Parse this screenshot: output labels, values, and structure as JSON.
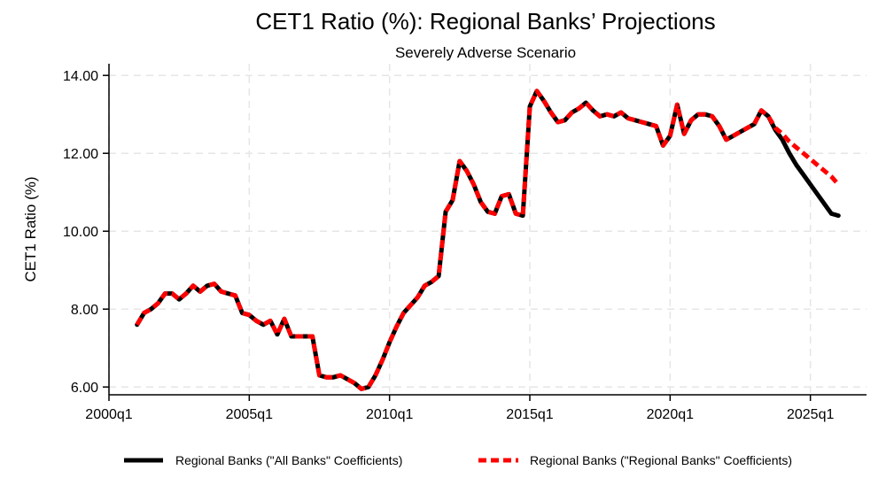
{
  "chart_data": {
    "type": "line",
    "title": "CET1 Ratio (%): Regional Banks’ Projections",
    "subtitle": "Severely Adverse Scenario",
    "ylabel": "CET1 Ratio (%)",
    "xlabel": "",
    "xlim": [
      2000.0,
      2027.0
    ],
    "ylim": [
      5.8,
      14.3
    ],
    "x_ticks": [
      2000.0,
      2005.0,
      2010.0,
      2015.0,
      2020.0,
      2025.0
    ],
    "x_tick_labels": [
      "2000q1",
      "2005q1",
      "2010q1",
      "2015q1",
      "2020q1",
      "2025q1"
    ],
    "y_ticks": [
      6,
      8,
      10,
      12,
      14
    ],
    "y_tick_labels": [
      "6.00",
      "8.00",
      "10.00",
      "12.00",
      "14.00"
    ],
    "grid": true,
    "legend_position": "bottom",
    "series": [
      {
        "name": "Regional Banks (\"All Banks\" Coefficients)",
        "color": "#000000",
        "style": "solid",
        "x": [
          2001.0,
          2001.25,
          2001.5,
          2001.75,
          2002.0,
          2002.25,
          2002.5,
          2002.75,
          2003.0,
          2003.25,
          2003.5,
          2003.75,
          2004.0,
          2004.25,
          2004.5,
          2004.75,
          2005.0,
          2005.25,
          2005.5,
          2005.75,
          2006.0,
          2006.25,
          2006.5,
          2006.75,
          2007.0,
          2007.25,
          2007.5,
          2007.75,
          2008.0,
          2008.25,
          2008.5,
          2008.75,
          2009.0,
          2009.25,
          2009.5,
          2009.75,
          2010.0,
          2010.25,
          2010.5,
          2010.75,
          2011.0,
          2011.25,
          2011.5,
          2011.75,
          2012.0,
          2012.25,
          2012.5,
          2012.75,
          2013.0,
          2013.25,
          2013.5,
          2013.75,
          2014.0,
          2014.25,
          2014.5,
          2014.75,
          2015.0,
          2015.25,
          2015.5,
          2015.75,
          2016.0,
          2016.25,
          2016.5,
          2016.75,
          2017.0,
          2017.25,
          2017.5,
          2017.75,
          2018.0,
          2018.25,
          2018.5,
          2018.75,
          2019.0,
          2019.25,
          2019.5,
          2019.75,
          2020.0,
          2020.25,
          2020.5,
          2020.75,
          2021.0,
          2021.25,
          2021.5,
          2021.75,
          2022.0,
          2022.25,
          2022.5,
          2022.75,
          2023.0,
          2023.25,
          2023.5,
          2023.75,
          2024.0,
          2024.25,
          2024.5,
          2024.75,
          2025.0,
          2025.25,
          2025.5,
          2025.75,
          2026.0
        ],
        "y": [
          7.6,
          7.9,
          8.0,
          8.15,
          8.4,
          8.4,
          8.25,
          8.4,
          8.6,
          8.45,
          8.6,
          8.65,
          8.45,
          8.4,
          8.35,
          7.9,
          7.85,
          7.7,
          7.6,
          7.7,
          7.35,
          7.75,
          7.3,
          7.3,
          7.3,
          7.3,
          6.3,
          6.25,
          6.25,
          6.3,
          6.2,
          6.1,
          5.95,
          6.0,
          6.3,
          6.7,
          7.15,
          7.55,
          7.9,
          8.1,
          8.3,
          8.6,
          8.7,
          8.85,
          10.5,
          10.8,
          11.8,
          11.55,
          11.2,
          10.75,
          10.5,
          10.45,
          10.9,
          10.95,
          10.45,
          10.4,
          13.2,
          13.6,
          13.35,
          13.05,
          12.8,
          12.85,
          13.05,
          13.15,
          13.3,
          13.1,
          12.95,
          13.0,
          12.95,
          13.05,
          12.9,
          12.85,
          12.8,
          12.75,
          12.7,
          12.2,
          12.45,
          13.25,
          12.5,
          12.85,
          13.0,
          13.0,
          12.95,
          12.7,
          12.35,
          12.45,
          12.55,
          12.65,
          12.75,
          13.1,
          12.95,
          12.6,
          12.35,
          12.0,
          11.7,
          11.45,
          11.2,
          10.95,
          10.7,
          10.45,
          10.4
        ]
      },
      {
        "name": "Regional Banks (\"Regional Banks\" Coefficients)",
        "color": "#ff0000",
        "style": "dashed",
        "x": [
          2001.0,
          2001.25,
          2001.5,
          2001.75,
          2002.0,
          2002.25,
          2002.5,
          2002.75,
          2003.0,
          2003.25,
          2003.5,
          2003.75,
          2004.0,
          2004.25,
          2004.5,
          2004.75,
          2005.0,
          2005.25,
          2005.5,
          2005.75,
          2006.0,
          2006.25,
          2006.5,
          2006.75,
          2007.0,
          2007.25,
          2007.5,
          2007.75,
          2008.0,
          2008.25,
          2008.5,
          2008.75,
          2009.0,
          2009.25,
          2009.5,
          2009.75,
          2010.0,
          2010.25,
          2010.5,
          2010.75,
          2011.0,
          2011.25,
          2011.5,
          2011.75,
          2012.0,
          2012.25,
          2012.5,
          2012.75,
          2013.0,
          2013.25,
          2013.5,
          2013.75,
          2014.0,
          2014.25,
          2014.5,
          2014.75,
          2015.0,
          2015.25,
          2015.5,
          2015.75,
          2016.0,
          2016.25,
          2016.5,
          2016.75,
          2017.0,
          2017.25,
          2017.5,
          2017.75,
          2018.0,
          2018.25,
          2018.5,
          2018.75,
          2019.0,
          2019.25,
          2019.5,
          2019.75,
          2020.0,
          2020.25,
          2020.5,
          2020.75,
          2021.0,
          2021.25,
          2021.5,
          2021.75,
          2022.0,
          2022.25,
          2022.5,
          2022.75,
          2023.0,
          2023.25,
          2023.5,
          2023.75,
          2024.0,
          2024.25,
          2024.5,
          2024.75,
          2025.0,
          2025.25,
          2025.5,
          2025.75,
          2026.0
        ],
        "y": [
          7.6,
          7.9,
          8.0,
          8.15,
          8.4,
          8.4,
          8.25,
          8.4,
          8.6,
          8.45,
          8.6,
          8.65,
          8.45,
          8.4,
          8.35,
          7.9,
          7.85,
          7.7,
          7.6,
          7.7,
          7.35,
          7.75,
          7.3,
          7.3,
          7.3,
          7.3,
          6.3,
          6.25,
          6.25,
          6.3,
          6.2,
          6.1,
          5.95,
          6.0,
          6.3,
          6.7,
          7.15,
          7.55,
          7.9,
          8.1,
          8.3,
          8.6,
          8.7,
          8.85,
          10.5,
          10.8,
          11.8,
          11.55,
          11.2,
          10.75,
          10.5,
          10.45,
          10.9,
          10.95,
          10.45,
          10.4,
          13.2,
          13.6,
          13.35,
          13.05,
          12.8,
          12.85,
          13.05,
          13.15,
          13.3,
          13.1,
          12.95,
          13.0,
          12.95,
          13.05,
          12.9,
          12.85,
          12.8,
          12.75,
          12.7,
          12.2,
          12.45,
          13.25,
          12.5,
          12.85,
          13.0,
          13.0,
          12.95,
          12.7,
          12.35,
          12.45,
          12.55,
          12.65,
          12.75,
          13.1,
          12.95,
          12.65,
          12.5,
          12.3,
          12.15,
          12.0,
          11.85,
          11.7,
          11.55,
          11.4,
          11.2
        ]
      }
    ]
  }
}
